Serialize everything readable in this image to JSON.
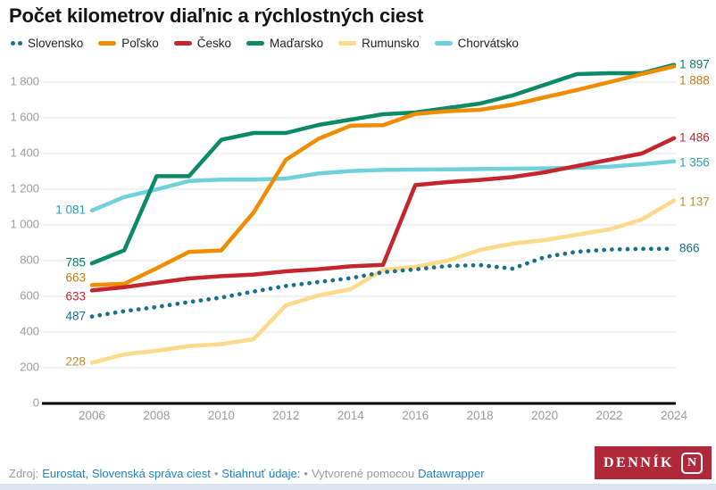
{
  "title": "Počet kilometrov diaľnic a rýchlostných ciest",
  "chart_data": {
    "type": "line",
    "title": "Počet kilometrov diaľnic a rýchlostných ciest",
    "x": [
      2006,
      2007,
      2008,
      2009,
      2010,
      2011,
      2012,
      2013,
      2014,
      2015,
      2016,
      2017,
      2018,
      2019,
      2020,
      2021,
      2022,
      2023,
      2024
    ],
    "x_ticks": [
      "2006",
      "2008",
      "2010",
      "2012",
      "2014",
      "2016",
      "2018",
      "2020",
      "2022",
      "2024"
    ],
    "y_ticks": [
      {
        "label": "0",
        "value": 0
      },
      {
        "label": "200",
        "value": 200
      },
      {
        "label": "400",
        "value": 400
      },
      {
        "label": "600",
        "value": 600
      },
      {
        "label": "800",
        "value": 800
      },
      {
        "label": "1 000",
        "value": 1000
      },
      {
        "label": "1 200",
        "value": 1200
      },
      {
        "label": "1 400",
        "value": 1400
      },
      {
        "label": "1 600",
        "value": 1600
      },
      {
        "label": "1 800",
        "value": 1800
      }
    ],
    "ylim": [
      0,
      1900
    ],
    "grid": true,
    "legend_position": "top",
    "series": [
      {
        "name": "Slovensko",
        "key": "slovensko",
        "color": "#1a6f8f",
        "label_color": "#1a6f8f",
        "style": "dotted",
        "start_label": "487",
        "end_label": "866",
        "values": [
          487,
          517,
          540,
          568,
          593,
          627,
          658,
          680,
          702,
          735,
          751,
          770,
          775,
          755,
          820,
          850,
          862,
          866,
          866
        ]
      },
      {
        "name": "Poľsko",
        "key": "polsko",
        "color": "#f08c00",
        "label_color": "#c07d0e",
        "style": "solid",
        "start_label": "663",
        "end_label": "1 888",
        "values": [
          663,
          670,
          757,
          849,
          857,
          1070,
          1365,
          1482,
          1556,
          1559,
          1622,
          1637,
          1645,
          1673,
          1715,
          1756,
          1800,
          1845,
          1888
        ]
      },
      {
        "name": "Česko",
        "key": "cesko",
        "color": "#c4262e",
        "label_color": "#c4262e",
        "style": "solid",
        "start_label": "633",
        "end_label": "1 486",
        "values": [
          633,
          651,
          676,
          700,
          713,
          722,
          740,
          752,
          768,
          776,
          1223,
          1240,
          1252,
          1268,
          1295,
          1330,
          1365,
          1400,
          1486
        ]
      },
      {
        "name": "Maďarsko",
        "key": "madarsko",
        "color": "#0c8a68",
        "label_color": "#0a8162",
        "style": "solid",
        "start_label": "785",
        "end_label": "1 897",
        "values": [
          785,
          858,
          1273,
          1273,
          1477,
          1515,
          1515,
          1560,
          1590,
          1620,
          1630,
          1655,
          1680,
          1725,
          1785,
          1845,
          1850,
          1850,
          1897
        ]
      },
      {
        "name": "Rumunsko",
        "key": "rumunsko",
        "color": "#fbda89",
        "label_color": "#b9912e",
        "style": "solid",
        "start_label": "228",
        "end_label": "1 137",
        "values": [
          228,
          275,
          295,
          321,
          332,
          360,
          550,
          605,
          640,
          748,
          765,
          800,
          860,
          895,
          915,
          945,
          975,
          1030,
          1137
        ]
      },
      {
        "name": "Chorvátsko",
        "key": "chorvatsko",
        "color": "#70d1db",
        "label_color": "#2b9fb3",
        "style": "solid",
        "start_label": "1 081",
        "end_label": "1 356",
        "values": [
          1081,
          1156,
          1199,
          1246,
          1254,
          1254,
          1260,
          1288,
          1302,
          1308,
          1310,
          1311,
          1313,
          1315,
          1317,
          1320,
          1326,
          1340,
          1356
        ]
      }
    ]
  },
  "footer": {
    "zdroj_label": "Zdroj:",
    "source_link": "Eurostat, Slovenská správa ciest",
    "separator": "•",
    "download_label": "Stiahnuť údaje:",
    "created_label": "Vytvorené pomocou",
    "created_link": "Datawrapper",
    "logo_text": "DENNÍK",
    "logo_n": "N"
  }
}
